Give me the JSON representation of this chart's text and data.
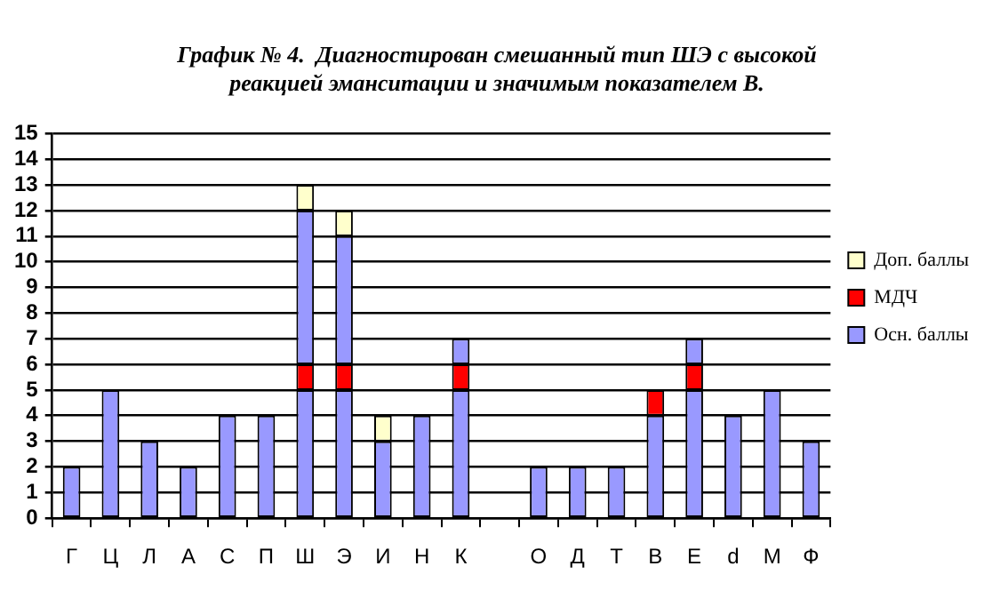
{
  "chart_data": {
    "type": "bar",
    "title": [
      "График № 4.  Диагностирован смешанный тип ШЭ с высокой",
      "реакцией эманситации и значимым показателем В."
    ],
    "categories": [
      "Г",
      "Ц",
      "Л",
      "А",
      "С",
      "П",
      "Ш",
      "Э",
      "И",
      "Н",
      "К",
      null,
      "О",
      "Д",
      "Т",
      "В",
      "Е",
      "d",
      "М",
      "Ф"
    ],
    "stacked": true,
    "series": [
      {
        "name": "Осн. баллы",
        "color": "#9999ff",
        "values": [
          2,
          5,
          3,
          2,
          4,
          4,
          5,
          5,
          3,
          4,
          5,
          null,
          2,
          2,
          2,
          4,
          5,
          4,
          5,
          3
        ]
      },
      {
        "name": "МДЧ",
        "color": "#ff0000",
        "values": [
          null,
          null,
          null,
          null,
          null,
          null,
          1,
          1,
          null,
          null,
          1,
          null,
          null,
          null,
          null,
          1,
          1,
          null,
          null,
          null
        ]
      },
      {
        "color": "#9999ff",
        "values": [
          null,
          null,
          null,
          null,
          null,
          null,
          6,
          5,
          null,
          null,
          1,
          null,
          null,
          null,
          null,
          null,
          1,
          null,
          null,
          null
        ]
      },
      {
        "name": "Доп. баллы",
        "color": "#ffffcc",
        "values": [
          null,
          null,
          null,
          null,
          null,
          null,
          1,
          1,
          1,
          null,
          null,
          null,
          null,
          null,
          null,
          null,
          null,
          null,
          null,
          null
        ]
      }
    ],
    "ylim": [
      0,
      15
    ],
    "yticks": [
      0,
      1,
      2,
      3,
      4,
      5,
      6,
      7,
      8,
      9,
      10,
      11,
      12,
      13,
      14,
      15
    ],
    "grid": "y",
    "legend": "right"
  }
}
